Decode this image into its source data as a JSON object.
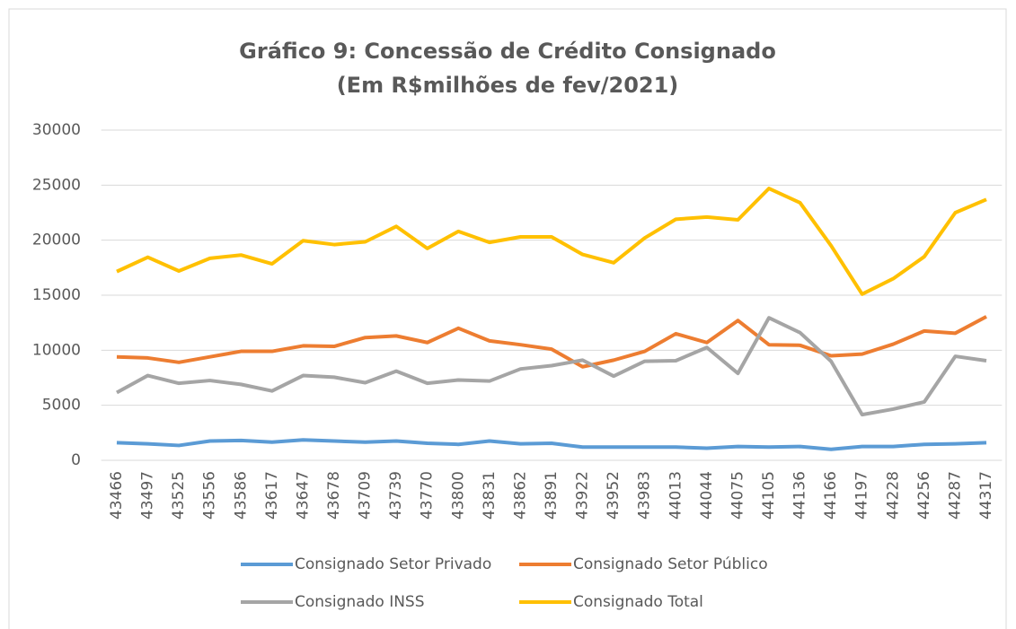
{
  "chart_data": {
    "type": "line",
    "title": "Gráfico 9: Concessão de Crédito Consignado",
    "subtitle": "(Em R$milhões de fev/2021)",
    "categories": [
      43466,
      43497,
      43525,
      43556,
      43586,
      43617,
      43647,
      43678,
      43709,
      43739,
      43770,
      43800,
      43831,
      43862,
      43891,
      43922,
      43952,
      43983,
      44013,
      44044,
      44075,
      44105,
      44136,
      44166,
      44197,
      44228,
      44256,
      44287,
      44317
    ],
    "series": [
      {
        "name": "Consignado Setor Privado",
        "color": "#5b9bd5",
        "values": [
          1600,
          1500,
          1350,
          1750,
          1800,
          1650,
          1850,
          1750,
          1650,
          1750,
          1550,
          1450,
          1750,
          1500,
          1550,
          1200,
          1200,
          1200,
          1200,
          1100,
          1250,
          1200,
          1250,
          1000,
          1250,
          1250,
          1450,
          1500,
          1600
        ]
      },
      {
        "name": "Consignado Setor Público",
        "color": "#ed7d31",
        "values": [
          9400,
          9300,
          8900,
          9400,
          9900,
          9900,
          10400,
          10350,
          11150,
          11300,
          10700,
          12000,
          10850,
          10500,
          10100,
          8500,
          9100,
          9900,
          11500,
          10700,
          12700,
          10500,
          10450,
          9500,
          9650,
          10550,
          11750,
          11550,
          13050
        ]
      },
      {
        "name": "Consignado INSS",
        "color": "#a5a5a5",
        "values": [
          6150,
          7700,
          7000,
          7250,
          6900,
          6300,
          7700,
          7550,
          7050,
          8100,
          7000,
          7300,
          7200,
          8300,
          8600,
          9100,
          7650,
          9000,
          9050,
          10250,
          7900,
          12950,
          11600,
          9000,
          4150,
          4650,
          5300,
          9450,
          9050
        ]
      },
      {
        "name": "Consignado Total",
        "color": "#ffc000",
        "values": [
          17150,
          18450,
          17200,
          18350,
          18650,
          17850,
          19950,
          19600,
          19850,
          21250,
          19250,
          20800,
          19800,
          20300,
          20300,
          18700,
          17950,
          20200,
          21900,
          22100,
          21850,
          24700,
          23400,
          19500,
          15100,
          16500,
          18500,
          22500,
          23700
        ]
      }
    ],
    "ylim": [
      0,
      30000
    ],
    "yticks": [
      0,
      5000,
      10000,
      15000,
      20000,
      25000,
      30000
    ],
    "grid": true
  }
}
